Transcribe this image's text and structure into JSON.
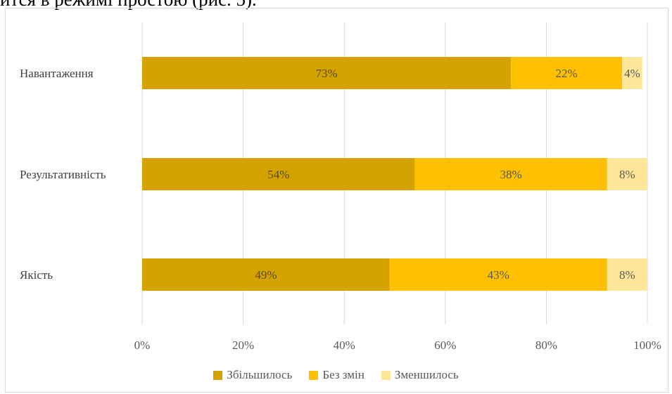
{
  "header": {
    "fragment": "ится в режимі простою (рис. 5)."
  },
  "chart_data": {
    "type": "bar",
    "orientation": "horizontal",
    "stacked": true,
    "categories": [
      "Навантаження",
      "Результативність",
      "Якість"
    ],
    "series": [
      {
        "name": "Збільшилось",
        "color": "#d4a300",
        "values": [
          73,
          54,
          49
        ],
        "labels": [
          "73%",
          "54%",
          "49%"
        ]
      },
      {
        "name": "Без змін",
        "color": "#ffc000",
        "values": [
          22,
          38,
          43
        ],
        "labels": [
          "22%",
          "38%",
          "43%"
        ]
      },
      {
        "name": "Зменшилось",
        "color": "#ffe699",
        "values": [
          4,
          8,
          8
        ],
        "labels": [
          "4%",
          "8%",
          "8%"
        ]
      }
    ],
    "xlim": [
      0,
      100
    ],
    "xticks": [
      "0%",
      "20%",
      "40%",
      "60%",
      "80%",
      "100%"
    ],
    "grid": true,
    "legend_position": "bottom"
  }
}
